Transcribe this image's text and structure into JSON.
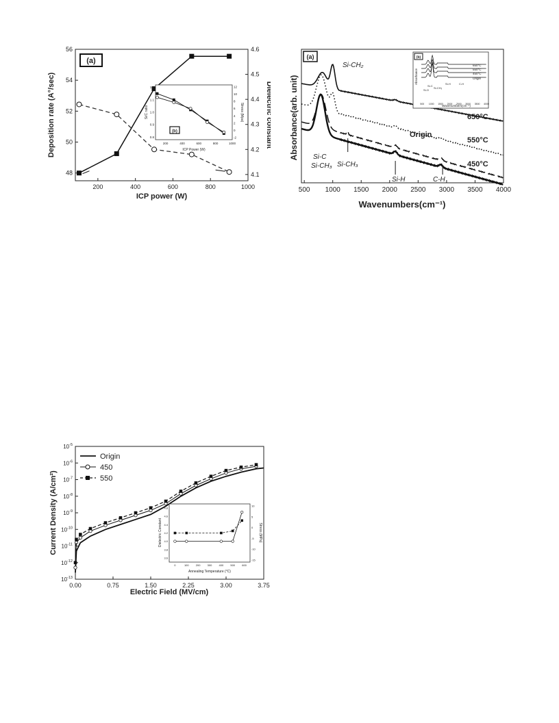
{
  "chart_data": [
    {
      "type": "line",
      "panel_label": "(a)",
      "xlabel": "ICP power (W)",
      "ylabel": "Deposition rate (A°/sec)",
      "ylabel_right": "Dielectric constant",
      "xlim": [
        80,
        1000
      ],
      "ylim": [
        47.5,
        56
      ],
      "ylim_right": [
        4.075,
        4.6
      ],
      "x_ticks": [
        "200",
        "400",
        "600",
        "800",
        "1000"
      ],
      "y_ticks": [
        "48",
        "50",
        "52",
        "54",
        "56"
      ],
      "y_ticks_right": [
        "4.1",
        "4.2",
        "4.3",
        "4.4",
        "4.5",
        "4.6"
      ],
      "series": [
        {
          "marker": "filled-square",
          "line": "solid",
          "axis": "left",
          "x": [
            100,
            300,
            500,
            700,
            900
          ],
          "y": [
            48.0,
            49.25,
            53.45,
            55.55,
            55.55
          ]
        },
        {
          "marker": "open-circle",
          "line": "dashed",
          "axis": "right",
          "x": [
            100,
            300,
            500,
            700,
            900
          ],
          "y": [
            4.38,
            4.34,
            4.2,
            4.18,
            4.11
          ]
        }
      ],
      "inset": {
        "panel_label": "(b)",
        "xlabel": "ICP Power (W)",
        "ylabel": "Si/C ratio",
        "ylabel_right": "Stress (Mpa)",
        "x_ticks": [
          "200",
          "400",
          "600",
          "800",
          "1000"
        ],
        "y_ticks": [
          "0.8",
          "0.9",
          "1.0",
          "1.1",
          "1.2"
        ],
        "y_ticks_right": [
          "-2",
          "0",
          "2",
          "4",
          "6",
          "8",
          "10",
          "12"
        ],
        "series": [
          {
            "marker": "filled-square",
            "x": [
              100,
              300,
              500,
              700,
              900
            ],
            "y": [
              1.15,
              1.1,
              1.02,
              0.93,
              0.83
            ]
          },
          {
            "marker": "open-circle",
            "x": [
              100,
              300,
              500,
              700,
              900
            ],
            "y": [
              1.12,
              1.08,
              1.03,
              0.92,
              0.84
            ]
          }
        ]
      }
    },
    {
      "type": "line",
      "panel_label": "(a)",
      "xlabel": "Wavenumbers(cm⁻¹)",
      "ylabel": "Absorbance(arb. unit)",
      "xlim": [
        450,
        4000
      ],
      "x_ticks": [
        "500",
        "1000",
        "1500",
        "2000",
        "2500",
        "3000",
        "3500",
        "4000"
      ],
      "curve_labels": [
        "650°C",
        "550°C",
        "Origin",
        "450°C"
      ],
      "peak_labels": [
        "Si-CH₂",
        "Si-C",
        "Si-CH₃",
        "Si-CH₃",
        "Si-H",
        "C-H"
      ],
      "inset": {
        "panel_label": "(b)",
        "ylabel": "Absorbance",
        "xlabel": "Wavenumbers(cm⁻¹)",
        "x_ticks": [
          "500",
          "1000",
          "1500",
          "2000",
          "2500",
          "3000",
          "3500",
          "4000"
        ],
        "curve_labels": [
          "650°C",
          "550°C",
          "450°C",
          "Origin"
        ],
        "peak_labels": [
          "Si-O",
          "Si-C",
          "Si-CH₃",
          "Si-H",
          "C-H"
        ]
      }
    },
    {
      "type": "line",
      "xlabel": "Electric Field (MV/cm)",
      "ylabel": "Current Density (A/cm²)",
      "xlim": [
        0,
        3.75
      ],
      "y_log": true,
      "ylim_exp": [
        -13,
        -5
      ],
      "x_ticks": [
        "0.00",
        "0.75",
        "1.50",
        "2.25",
        "3.00",
        "3.75"
      ],
      "y_tick_exps": [
        "-5",
        "-6",
        "-7",
        "-8",
        "-9",
        "-10",
        "-11",
        "-12",
        "-13"
      ],
      "legend": [
        "Origin",
        "450",
        "550"
      ],
      "legend_position": "top-left",
      "series": [
        {
          "name": "Origin",
          "line": "solid",
          "x": [
            0.0,
            0.02,
            0.1,
            0.3,
            0.6,
            0.9,
            1.2,
            1.5,
            1.8,
            2.1,
            2.4,
            2.7,
            3.0,
            3.3,
            3.6,
            3.75
          ],
          "log_y": [
            -12.6,
            -11.3,
            -10.8,
            -10.4,
            -10.0,
            -9.7,
            -9.4,
            -9.1,
            -8.6,
            -8.0,
            -7.5,
            -7.1,
            -6.8,
            -6.55,
            -6.35,
            -6.3
          ]
        },
        {
          "name": "450",
          "line": "solid-open-circle",
          "x": [
            0.0,
            0.02,
            0.1,
            0.3,
            0.6,
            0.9,
            1.2,
            1.5,
            1.8,
            2.1,
            2.4,
            2.7,
            3.0,
            3.3,
            3.6
          ],
          "log_y": [
            -12.3,
            -10.8,
            -10.5,
            -10.1,
            -9.75,
            -9.45,
            -9.15,
            -8.85,
            -8.45,
            -7.85,
            -7.35,
            -6.95,
            -6.6,
            -6.35,
            -6.2
          ]
        },
        {
          "name": "550",
          "line": "dashed-filled-square",
          "x": [
            0.0,
            0.02,
            0.1,
            0.3,
            0.6,
            0.9,
            1.2,
            1.5,
            1.8,
            2.1,
            2.4,
            2.7,
            3.0,
            3.3,
            3.6
          ],
          "log_y": [
            -12.0,
            -10.6,
            -10.3,
            -9.95,
            -9.6,
            -9.3,
            -9.0,
            -8.7,
            -8.3,
            -7.7,
            -7.2,
            -6.8,
            -6.45,
            -6.25,
            -6.1
          ]
        }
      ],
      "inset": {
        "xlabel": "Annealing Temperature (°C)",
        "ylabel": "Dielectric Constant",
        "ylabel_right": "Stress (MPa)",
        "x_ticks": [
          "0",
          "100",
          "200",
          "300",
          "400",
          "500",
          "600"
        ],
        "y_ticks": [
          "3.6",
          "3.8",
          "4.0",
          "4.2",
          "4.4",
          "4.6",
          "4.8"
        ],
        "y_ticks_right": [
          "-15",
          "-10",
          "-5",
          "0",
          "5",
          "10"
        ],
        "series": [
          {
            "marker": "open-circle",
            "x": [
              0,
              100,
              400,
              500,
              580
            ],
            "y": [
              4.0,
              4.0,
              4.0,
              4.0,
              4.7
            ]
          },
          {
            "marker": "filled-square",
            "x": [
              0,
              100,
              400,
              500,
              580
            ],
            "y": [
              4.2,
              4.2,
              4.2,
              4.25,
              4.5
            ]
          }
        ]
      }
    }
  ]
}
